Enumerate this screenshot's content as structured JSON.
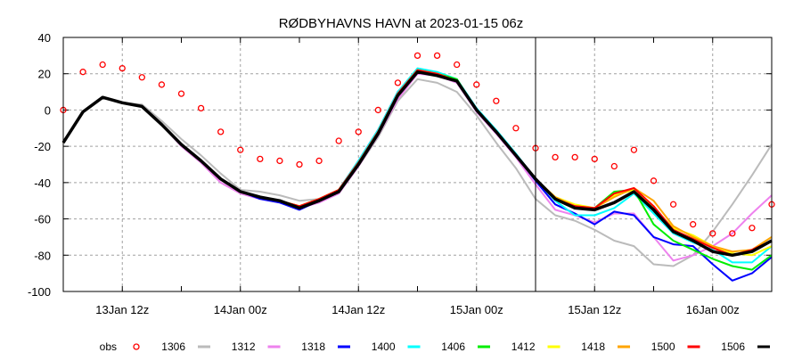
{
  "chart_data": {
    "type": "line",
    "title": "RØDBYHAVNS HAVN at 2023-01-15 06z",
    "xlabel": "",
    "ylabel": "",
    "ylim": [
      -100,
      40
    ],
    "yticks": [
      -100,
      -80,
      -60,
      -40,
      -20,
      0,
      20,
      40
    ],
    "xlim": [
      "2023-01-13T06",
      "2023-01-16T06"
    ],
    "xticks": [
      {
        "t": "2023-01-13T12",
        "label": "13Jan 12z"
      },
      {
        "t": "2023-01-14T00",
        "label": "14Jan 00z"
      },
      {
        "t": "2023-01-14T12",
        "label": "14Jan 12z"
      },
      {
        "t": "2023-01-15T00",
        "label": "15Jan 00z"
      },
      {
        "t": "2023-01-15T12",
        "label": "15Jan 12z"
      },
      {
        "t": "2023-01-16T00",
        "label": "16Jan 00z"
      }
    ],
    "analysis_time": "2023-01-15T06",
    "grid": true,
    "legend_position": "bottom",
    "x": [
      "2023-01-13T06",
      "2023-01-13T08",
      "2023-01-13T10",
      "2023-01-13T12",
      "2023-01-13T14",
      "2023-01-13T16",
      "2023-01-13T18",
      "2023-01-13T20",
      "2023-01-13T22",
      "2023-01-14T00",
      "2023-01-14T02",
      "2023-01-14T04",
      "2023-01-14T06",
      "2023-01-14T08",
      "2023-01-14T10",
      "2023-01-14T12",
      "2023-01-14T14",
      "2023-01-14T16",
      "2023-01-14T18",
      "2023-01-14T20",
      "2023-01-14T22",
      "2023-01-15T00",
      "2023-01-15T02",
      "2023-01-15T04",
      "2023-01-15T06",
      "2023-01-15T08",
      "2023-01-15T10",
      "2023-01-15T12",
      "2023-01-15T14",
      "2023-01-15T16",
      "2023-01-15T18",
      "2023-01-15T20",
      "2023-01-15T22",
      "2023-01-16T00",
      "2023-01-16T02",
      "2023-01-16T04",
      "2023-01-16T06"
    ],
    "obs": {
      "name": "obs",
      "color": "#ff0000",
      "values": [
        0,
        21,
        25,
        23,
        18,
        14,
        9,
        1,
        -12,
        -22,
        -27,
        -28,
        -30,
        -28,
        -17,
        -12,
        0,
        15,
        30,
        30,
        25,
        14,
        5,
        -10,
        -21,
        -26,
        -26,
        -27,
        -31,
        -22,
        -39,
        -52,
        -63,
        -68,
        -68,
        -65,
        -52
      ]
    },
    "series": [
      {
        "name": "1306",
        "color": "#bbbbbb",
        "values": [
          -18,
          -1,
          7,
          4,
          3,
          -6,
          -16,
          -25,
          -35,
          -44,
          -45,
          -47,
          -50,
          -49,
          -46,
          -31,
          -15,
          5,
          17,
          15,
          10,
          -3,
          -18,
          -32,
          -49,
          -58,
          -61,
          -66,
          -72,
          -75,
          -85,
          -86,
          -80,
          -67,
          -52,
          -36,
          -19
        ]
      },
      {
        "name": "1312",
        "color": "#ee82ee",
        "values": [
          -18,
          -1,
          7,
          4,
          2,
          -8,
          -20,
          -29,
          -40,
          -46,
          -49,
          -51,
          -54,
          -51,
          -46,
          -31,
          -14,
          6,
          20,
          19,
          15,
          -1,
          -13,
          -26,
          -41,
          -55,
          -58,
          -62,
          -57,
          -57,
          -70,
          -83,
          -80,
          -75,
          -68,
          -57,
          -47
        ]
      },
      {
        "name": "1318",
        "color": "#0000ff",
        "values": [
          -18,
          -1,
          7,
          4,
          2,
          -8,
          -19,
          -28,
          -38,
          -45,
          -49,
          -51,
          -55,
          -50,
          -44,
          -28,
          -11,
          10,
          22,
          20,
          16,
          0,
          -12,
          -25,
          -39,
          -52,
          -57,
          -63,
          -56,
          -58,
          -70,
          -74,
          -75,
          -85,
          -94,
          -90,
          -81
        ]
      },
      {
        "name": "1400",
        "color": "#00ffff",
        "values": [
          -18,
          -1,
          7,
          4,
          2,
          -8,
          -19,
          -28,
          -38,
          -45,
          -48,
          -50,
          -53,
          -49,
          -44,
          -28,
          -11,
          10,
          23,
          21,
          17,
          1,
          -11,
          -24,
          -38,
          -50,
          -58,
          -58,
          -54,
          -46,
          -57,
          -68,
          -73,
          -77,
          -84,
          -84,
          -75
        ]
      },
      {
        "name": "1406",
        "color": "#00ee00",
        "values": [
          -18,
          -1,
          7,
          4,
          2,
          -8,
          -19,
          -28,
          -38,
          -45,
          -48,
          -50,
          -53,
          -49,
          -44,
          -29,
          -12,
          9,
          22,
          20,
          17,
          0,
          -12,
          -25,
          -38,
          -49,
          -53,
          -54,
          -45,
          -44,
          -63,
          -72,
          -77,
          -82,
          -86,
          -88,
          -80
        ]
      },
      {
        "name": "1412",
        "color": "#ffff00",
        "values": [
          -18,
          -1,
          7,
          4,
          2,
          -8,
          -19,
          -28,
          -38,
          -45,
          -48,
          -50,
          -53,
          -49,
          -44,
          -29,
          -12,
          9,
          22,
          20,
          16,
          0,
          -12,
          -25,
          -38,
          -48,
          -52,
          -54,
          -47,
          -44,
          -54,
          -65,
          -69,
          -75,
          -79,
          -80,
          -75
        ]
      },
      {
        "name": "1418",
        "color": "#ffa500",
        "values": [
          -18,
          -1,
          7,
          4,
          2,
          -8,
          -19,
          -28,
          -38,
          -45,
          -48,
          -50,
          -53,
          -49,
          -44,
          -29,
          -12,
          9,
          22,
          20,
          16,
          0,
          -12,
          -25,
          -38,
          -48,
          -53,
          -54,
          -48,
          -43,
          -50,
          -64,
          -70,
          -75,
          -78,
          -77,
          -70
        ]
      },
      {
        "name": "1500",
        "color": "#ff0000",
        "values": [
          -18,
          -1,
          7,
          4,
          2,
          -8,
          -19,
          -28,
          -38,
          -45,
          -48,
          -50,
          -53,
          -49,
          -44,
          -29,
          -12,
          9,
          22,
          20,
          16,
          0,
          -12,
          -25,
          -38,
          -49,
          -53,
          -54,
          -46,
          -43,
          -53,
          -66,
          -71,
          -76,
          -80,
          -77,
          -72
        ]
      },
      {
        "name": "1506",
        "color": "#000000",
        "values": [
          -18,
          -1,
          7,
          4,
          2,
          -8,
          -19,
          -28,
          -38,
          -45,
          -48,
          -50,
          -54,
          -50,
          -45,
          -30,
          -13,
          8,
          21,
          19,
          16,
          0,
          -12,
          -25,
          -38,
          -49,
          -54,
          -55,
          -51,
          -45,
          -55,
          -67,
          -72,
          -78,
          -80,
          -78,
          -72
        ]
      }
    ]
  }
}
